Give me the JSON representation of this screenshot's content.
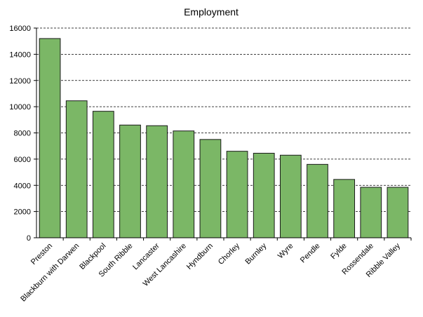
{
  "chart_data": {
    "type": "bar",
    "title": "Employment",
    "xlabel": "",
    "ylabel": "",
    "categories": [
      "Preston",
      "Blackburn with Darwen",
      "Blackpool",
      "South Ribble",
      "Lancaster",
      "West Lancashire",
      "Hyndburn",
      "Chorley",
      "Burnley",
      "Wyre",
      "Pendle",
      "Fylde",
      "Rossendale",
      "Ribble Valley"
    ],
    "values": [
      15200,
      10450,
      9650,
      8600,
      8550,
      8150,
      7500,
      6600,
      6450,
      6300,
      5600,
      4450,
      3850,
      3850
    ],
    "ylim": [
      0,
      16000
    ],
    "yticks": [
      "0",
      "2000",
      "4000",
      "6000",
      "8000",
      "10000",
      "12000",
      "14000",
      "16000"
    ],
    "grid": true,
    "legend": "none",
    "colors": {
      "bar": "#7bb766",
      "bar_edge": "#1a1a1a",
      "grid": "#000000"
    }
  }
}
